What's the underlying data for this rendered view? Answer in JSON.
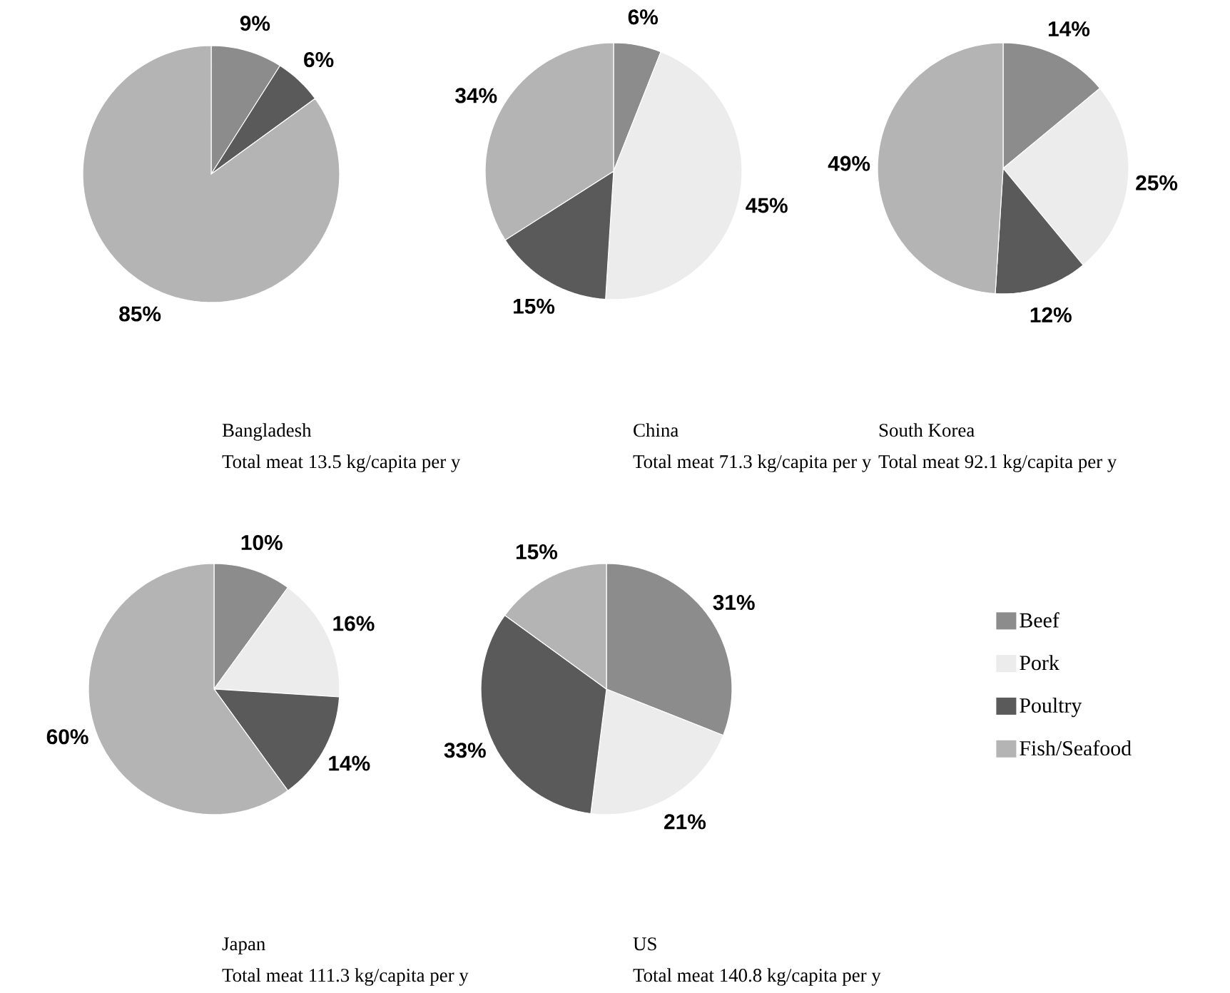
{
  "chart_data": [
    {
      "type": "pie",
      "title": "Bangladesh",
      "subtitle": "Total meat 13.5 kg/capita per y",
      "categories": [
        null,
        null,
        null,
        null
      ],
      "values": [
        9,
        0,
        6,
        85
      ],
      "value_labels": [
        "9%",
        null,
        "6%",
        "85%"
      ],
      "colors": [
        "#8c8c8c",
        "#ececec",
        "#5a5a5a",
        "#b4b4b4"
      ],
      "legend": false
    },
    {
      "type": "pie",
      "title": "China",
      "subtitle": "Total meat 71.3 kg/capita per y",
      "categories": [
        null,
        null,
        null,
        null
      ],
      "values": [
        6,
        45,
        15,
        34
      ],
      "value_labels": [
        "6%",
        "45%",
        "15%",
        "34%"
      ],
      "colors": [
        "#8c8c8c",
        "#ececec",
        "#5a5a5a",
        "#b4b4b4"
      ],
      "legend": false
    },
    {
      "type": "pie",
      "title": "South Korea",
      "subtitle": "Total meat 92.1 kg/capita per y",
      "categories": [
        null,
        null,
        null,
        null
      ],
      "values": [
        14,
        25,
        12,
        49
      ],
      "value_labels": [
        "14%",
        "25%",
        "12%",
        "49%"
      ],
      "colors": [
        "#8c8c8c",
        "#ececec",
        "#5a5a5a",
        "#b4b4b4"
      ],
      "legend": false
    },
    {
      "type": "pie",
      "title": "Japan",
      "subtitle": "Total meat 111.3 kg/capita per y",
      "categories": [
        null,
        null,
        null,
        null
      ],
      "values": [
        10,
        16,
        14,
        60
      ],
      "value_labels": [
        "10%",
        "16%",
        "14%",
        "60%"
      ],
      "colors": [
        "#8c8c8c",
        "#ececec",
        "#5a5a5a",
        "#b4b4b4"
      ],
      "legend": false
    },
    {
      "type": "pie",
      "title": "US",
      "subtitle": "Total meat 140.8 kg/capita per y",
      "categories": [
        "Beef",
        "Pork",
        "Poultry",
        "Fish/Seafood"
      ],
      "values": [
        31,
        21,
        33,
        15
      ],
      "value_labels": [
        "31%",
        "21%",
        "33%",
        "15%"
      ],
      "colors": [
        "#8c8c8c",
        "#ececec",
        "#5a5a5a",
        "#b4b4b4"
      ],
      "legend": "right"
    }
  ]
}
